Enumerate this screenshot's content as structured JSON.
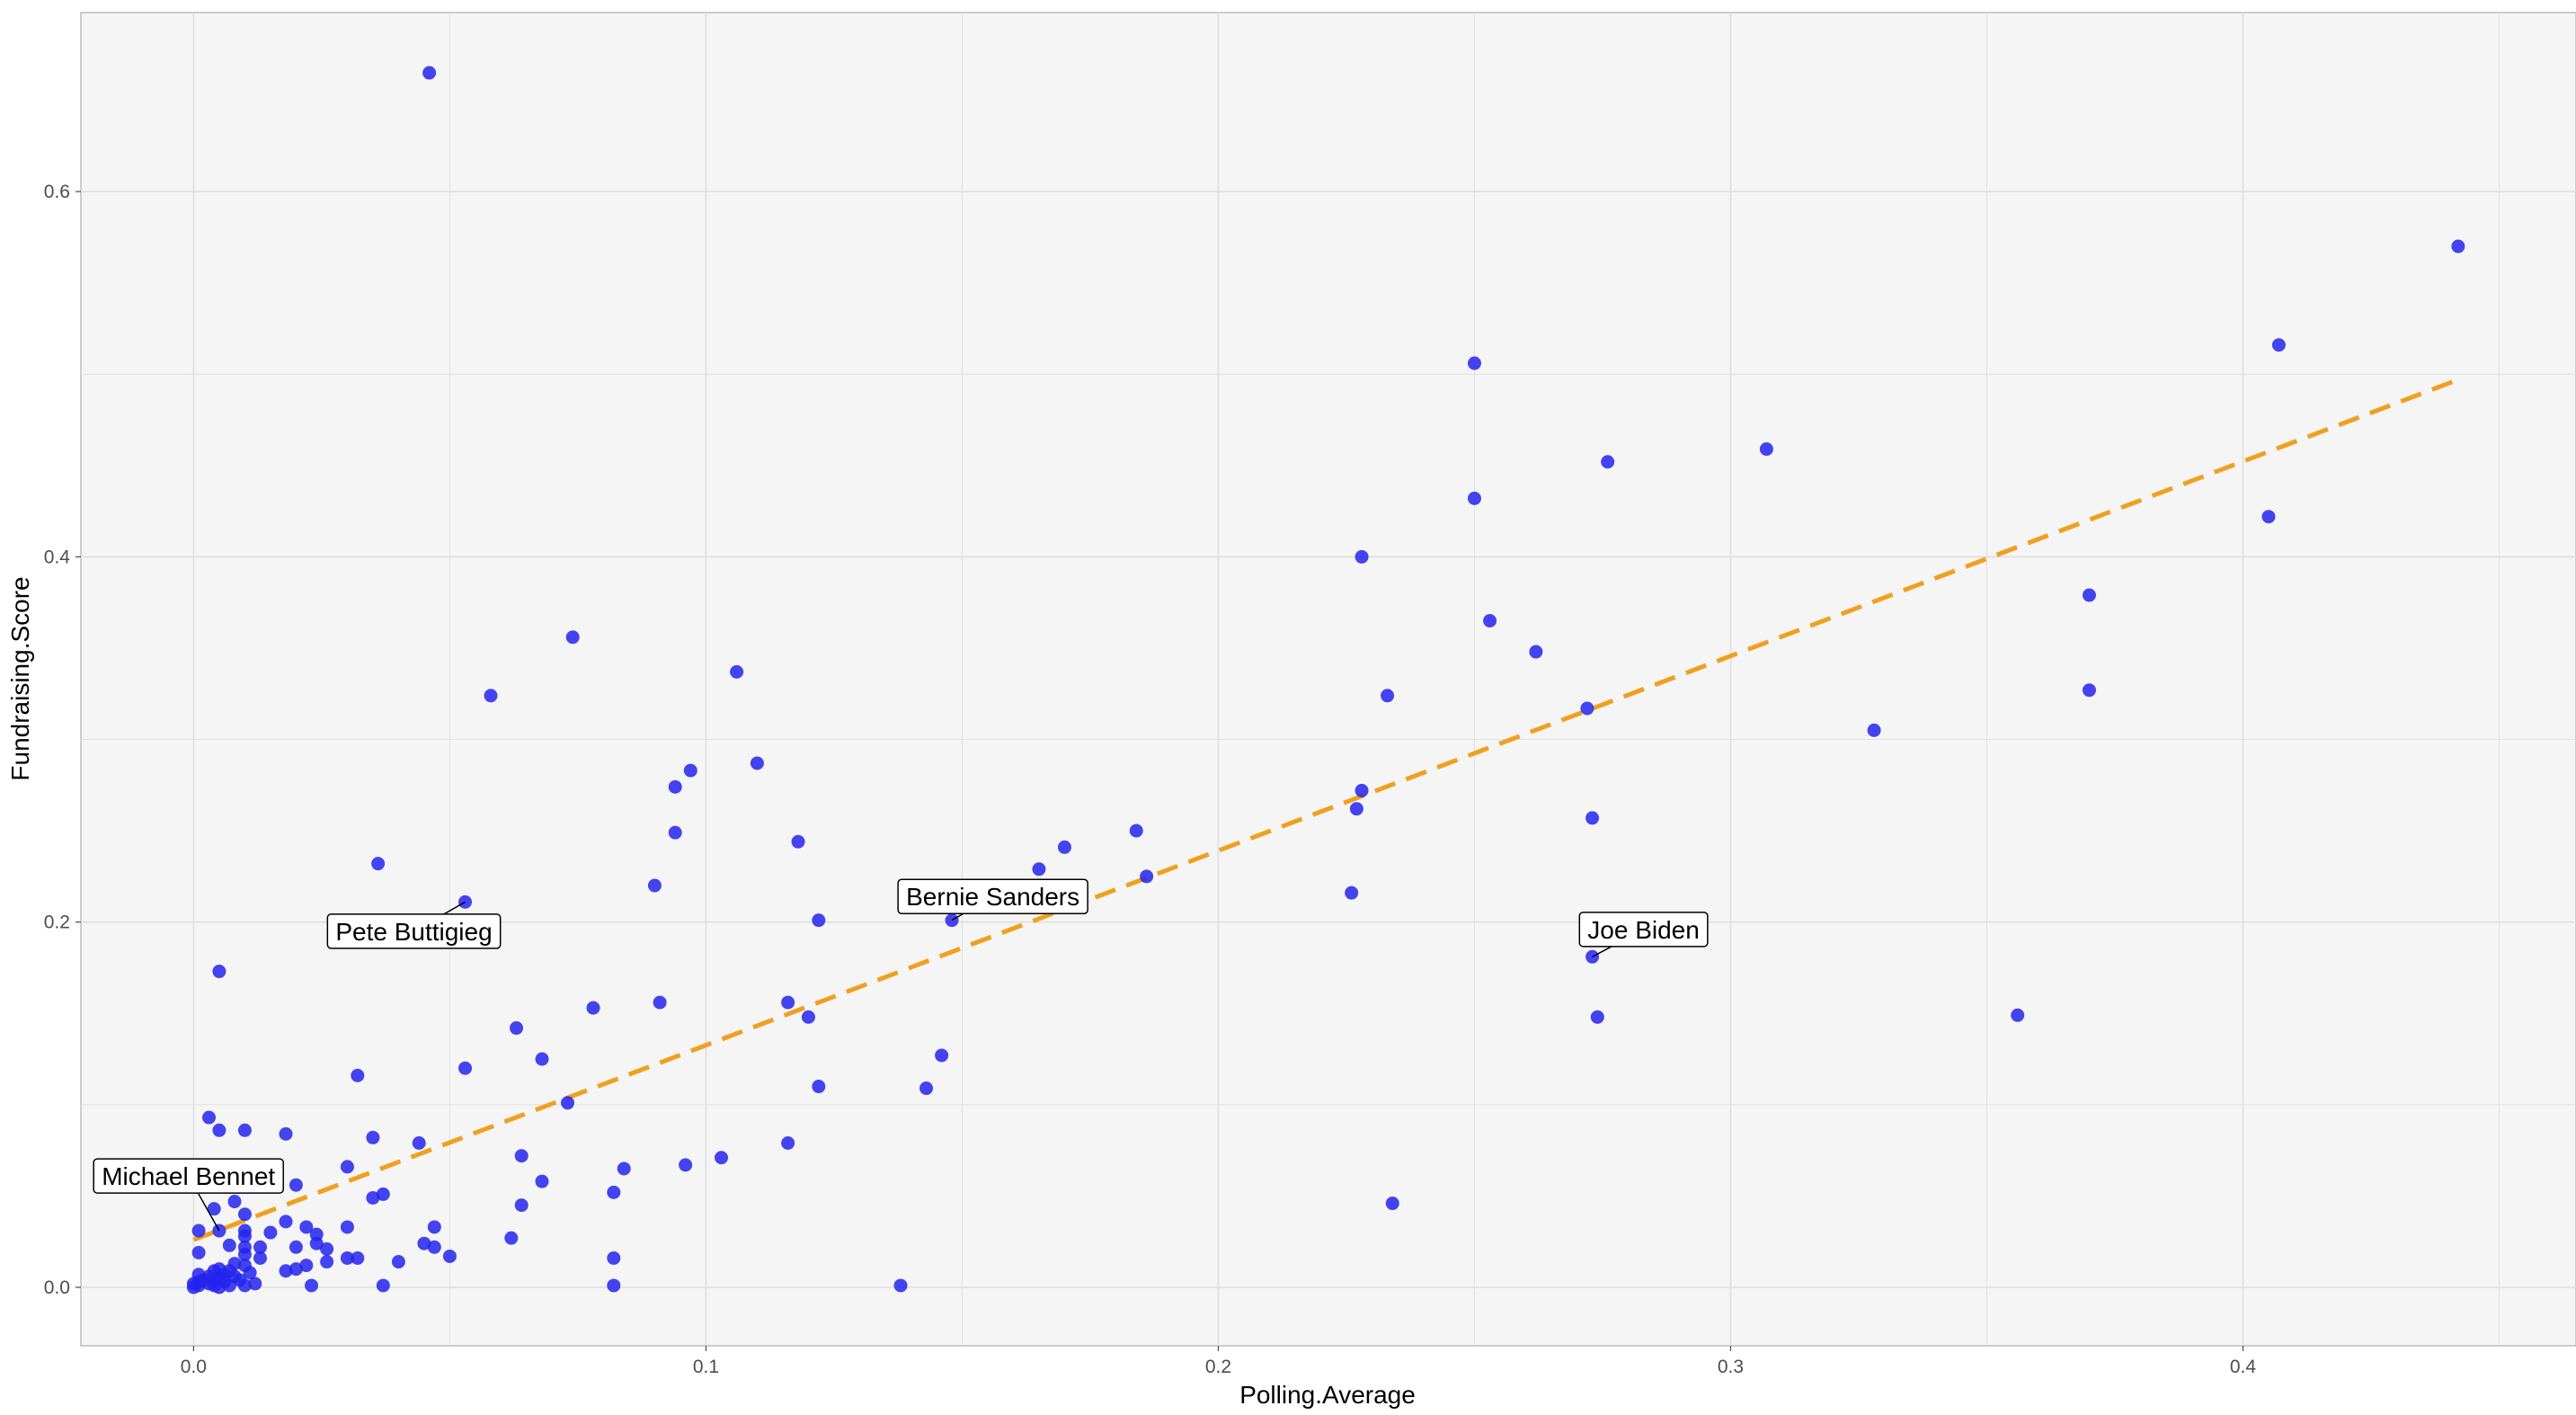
{
  "chart_data": {
    "type": "scatter",
    "title": "",
    "xlabel": "Polling.Average",
    "ylabel": "Fundraising.Score",
    "xlim": [
      -0.022,
      0.465
    ],
    "ylim": [
      -0.032,
      0.698
    ],
    "x_ticks": [
      0.0,
      0.1,
      0.2,
      0.3,
      0.4
    ],
    "x_tick_labels": [
      "0.0",
      "0.1",
      "0.2",
      "0.3",
      "0.4"
    ],
    "y_ticks": [
      0.0,
      0.2,
      0.4,
      0.6
    ],
    "y_tick_labels": [
      "0.0",
      "0.2",
      "0.4",
      "0.6"
    ],
    "grid": true,
    "background_color": "#f5f5f5",
    "grid_color": "#dedede",
    "point_color": "#2323ee",
    "trend_color": "#f0a020",
    "trend_line": {
      "style": "dashed",
      "x": [
        0.0,
        0.442
      ],
      "y": [
        0.026,
        0.497
      ]
    },
    "points": [
      {
        "x": 0.046,
        "y": 0.665
      },
      {
        "x": 0.442,
        "y": 0.57
      },
      {
        "x": 0.407,
        "y": 0.516
      },
      {
        "x": 0.25,
        "y": 0.506
      },
      {
        "x": 0.307,
        "y": 0.459
      },
      {
        "x": 0.276,
        "y": 0.452
      },
      {
        "x": 0.25,
        "y": 0.432
      },
      {
        "x": 0.405,
        "y": 0.422
      },
      {
        "x": 0.228,
        "y": 0.4
      },
      {
        "x": 0.37,
        "y": 0.379
      },
      {
        "x": 0.253,
        "y": 0.365
      },
      {
        "x": 0.074,
        "y": 0.356
      },
      {
        "x": 0.262,
        "y": 0.348
      },
      {
        "x": 0.106,
        "y": 0.337
      },
      {
        "x": 0.37,
        "y": 0.327
      },
      {
        "x": 0.058,
        "y": 0.324
      },
      {
        "x": 0.233,
        "y": 0.324
      },
      {
        "x": 0.272,
        "y": 0.317
      },
      {
        "x": 0.328,
        "y": 0.305
      },
      {
        "x": 0.11,
        "y": 0.287
      },
      {
        "x": 0.097,
        "y": 0.283
      },
      {
        "x": 0.094,
        "y": 0.274
      },
      {
        "x": 0.228,
        "y": 0.272
      },
      {
        "x": 0.227,
        "y": 0.262
      },
      {
        "x": 0.273,
        "y": 0.257
      },
      {
        "x": 0.184,
        "y": 0.25
      },
      {
        "x": 0.094,
        "y": 0.249
      },
      {
        "x": 0.118,
        "y": 0.244
      },
      {
        "x": 0.17,
        "y": 0.241
      },
      {
        "x": 0.036,
        "y": 0.232
      },
      {
        "x": 0.165,
        "y": 0.229
      },
      {
        "x": 0.186,
        "y": 0.225
      },
      {
        "x": 0.09,
        "y": 0.22
      },
      {
        "x": 0.226,
        "y": 0.216
      },
      {
        "x": 0.053,
        "y": 0.211
      },
      {
        "x": 0.148,
        "y": 0.201
      },
      {
        "x": 0.122,
        "y": 0.201
      },
      {
        "x": 0.273,
        "y": 0.181
      },
      {
        "x": 0.005,
        "y": 0.173
      },
      {
        "x": 0.116,
        "y": 0.156
      },
      {
        "x": 0.091,
        "y": 0.156
      },
      {
        "x": 0.078,
        "y": 0.153
      },
      {
        "x": 0.356,
        "y": 0.149
      },
      {
        "x": 0.274,
        "y": 0.148
      },
      {
        "x": 0.12,
        "y": 0.148
      },
      {
        "x": 0.063,
        "y": 0.142
      },
      {
        "x": 0.146,
        "y": 0.127
      },
      {
        "x": 0.068,
        "y": 0.125
      },
      {
        "x": 0.053,
        "y": 0.12
      },
      {
        "x": 0.032,
        "y": 0.116
      },
      {
        "x": 0.122,
        "y": 0.11
      },
      {
        "x": 0.143,
        "y": 0.109
      },
      {
        "x": 0.073,
        "y": 0.101
      },
      {
        "x": 0.003,
        "y": 0.093
      },
      {
        "x": 0.005,
        "y": 0.086
      },
      {
        "x": 0.01,
        "y": 0.086
      },
      {
        "x": 0.018,
        "y": 0.084
      },
      {
        "x": 0.035,
        "y": 0.082
      },
      {
        "x": 0.044,
        "y": 0.079
      },
      {
        "x": 0.116,
        "y": 0.079
      },
      {
        "x": 0.064,
        "y": 0.072
      },
      {
        "x": 0.103,
        "y": 0.071
      },
      {
        "x": 0.096,
        "y": 0.067
      },
      {
        "x": 0.03,
        "y": 0.066
      },
      {
        "x": 0.084,
        "y": 0.065
      },
      {
        "x": 0.068,
        "y": 0.058
      },
      {
        "x": 0.02,
        "y": 0.056
      },
      {
        "x": 0.082,
        "y": 0.052
      },
      {
        "x": 0.037,
        "y": 0.051
      },
      {
        "x": 0.035,
        "y": 0.049
      },
      {
        "x": 0.008,
        "y": 0.047
      },
      {
        "x": 0.234,
        "y": 0.046
      },
      {
        "x": 0.064,
        "y": 0.045
      },
      {
        "x": 0.004,
        "y": 0.043
      },
      {
        "x": 0.01,
        "y": 0.04
      },
      {
        "x": 0.018,
        "y": 0.036
      },
      {
        "x": 0.047,
        "y": 0.033
      },
      {
        "x": 0.022,
        "y": 0.033
      },
      {
        "x": 0.03,
        "y": 0.033
      },
      {
        "x": 0.01,
        "y": 0.031
      },
      {
        "x": 0.001,
        "y": 0.031
      },
      {
        "x": 0.005,
        "y": 0.031
      },
      {
        "x": 0.015,
        "y": 0.03
      },
      {
        "x": 0.024,
        "y": 0.029
      },
      {
        "x": 0.01,
        "y": 0.028
      },
      {
        "x": 0.062,
        "y": 0.027
      },
      {
        "x": 0.045,
        "y": 0.024
      },
      {
        "x": 0.024,
        "y": 0.024
      },
      {
        "x": 0.007,
        "y": 0.023
      },
      {
        "x": 0.01,
        "y": 0.022
      },
      {
        "x": 0.047,
        "y": 0.022
      },
      {
        "x": 0.02,
        "y": 0.022
      },
      {
        "x": 0.013,
        "y": 0.022
      },
      {
        "x": 0.026,
        "y": 0.021
      },
      {
        "x": 0.001,
        "y": 0.019
      },
      {
        "x": 0.01,
        "y": 0.018
      },
      {
        "x": 0.05,
        "y": 0.017
      },
      {
        "x": 0.013,
        "y": 0.016
      },
      {
        "x": 0.082,
        "y": 0.016
      },
      {
        "x": 0.03,
        "y": 0.016
      },
      {
        "x": 0.032,
        "y": 0.016
      },
      {
        "x": 0.026,
        "y": 0.014
      },
      {
        "x": 0.04,
        "y": 0.014
      },
      {
        "x": 0.008,
        "y": 0.013
      },
      {
        "x": 0.022,
        "y": 0.012
      },
      {
        "x": 0.01,
        "y": 0.012
      },
      {
        "x": 0.005,
        "y": 0.01
      },
      {
        "x": 0.02,
        "y": 0.01
      },
      {
        "x": 0.018,
        "y": 0.009
      },
      {
        "x": 0.004,
        "y": 0.009
      },
      {
        "x": 0.007,
        "y": 0.009
      },
      {
        "x": 0.011,
        "y": 0.008
      },
      {
        "x": 0.001,
        "y": 0.007
      },
      {
        "x": 0.006,
        "y": 0.007
      },
      {
        "x": 0.003,
        "y": 0.006
      },
      {
        "x": 0.008,
        "y": 0.006
      },
      {
        "x": 0.005,
        "y": 0.005
      },
      {
        "x": 0.002,
        "y": 0.004
      },
      {
        "x": 0.004,
        "y": 0.004
      },
      {
        "x": 0.009,
        "y": 0.004
      },
      {
        "x": 0.001,
        "y": 0.003
      },
      {
        "x": 0.006,
        "y": 0.003
      },
      {
        "x": 0.003,
        "y": 0.002
      },
      {
        "x": 0.012,
        "y": 0.002
      },
      {
        "x": 0.0,
        "y": 0.002
      },
      {
        "x": 0.007,
        "y": 0.001
      },
      {
        "x": 0.138,
        "y": 0.001
      },
      {
        "x": 0.023,
        "y": 0.001
      },
      {
        "x": 0.037,
        "y": 0.001
      },
      {
        "x": 0.082,
        "y": 0.001
      },
      {
        "x": 0.001,
        "y": 0.001
      },
      {
        "x": 0.004,
        "y": 0.001
      },
      {
        "x": 0.01,
        "y": 0.001
      },
      {
        "x": 0.0,
        "y": 0.0
      },
      {
        "x": 0.005,
        "y": 0.0
      }
    ],
    "annotations": [
      {
        "label": "Bernie Sanders",
        "x": 0.148,
        "y": 0.201,
        "label_x": 0.156,
        "label_y": 0.214
      },
      {
        "label": "Joe Biden",
        "x": 0.273,
        "y": 0.181,
        "label_x": 0.283,
        "label_y": 0.196
      },
      {
        "label": "Pete Buttigieg",
        "x": 0.053,
        "y": 0.211,
        "label_x": 0.043,
        "label_y": 0.195
      },
      {
        "label": "Michael Bennet",
        "x": 0.005,
        "y": 0.031,
        "label_x": -0.001,
        "label_y": 0.061
      }
    ]
  }
}
